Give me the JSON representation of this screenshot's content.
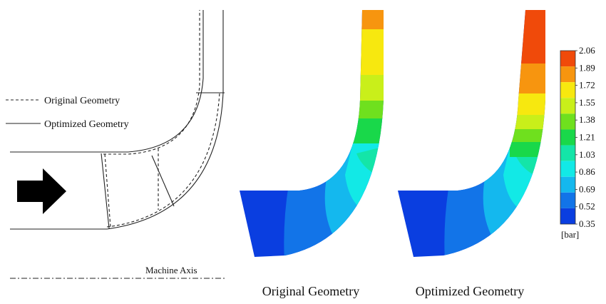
{
  "legend": {
    "original": "Original Geometry",
    "optimized": "Optimized Geometry"
  },
  "axis_label": "Machine Axis",
  "panel_captions": {
    "original": "Original Geometry",
    "optimized": "Optimized Geometry"
  },
  "colorbar": {
    "unit": "[bar]",
    "ticks": [
      "2.06",
      "1.89",
      "1.72",
      "1.55",
      "1.38",
      "1.21",
      "1.03",
      "0.86",
      "0.69",
      "0.52",
      "0.35"
    ],
    "colors": [
      "#f04a0a",
      "#f7950f",
      "#f7e80f",
      "#c9ef1a",
      "#6fe01e",
      "#19d84a",
      "#14e5a8",
      "#12e9e6",
      "#14b8ee",
      "#1274e8",
      "#0a3ee0"
    ]
  }
}
